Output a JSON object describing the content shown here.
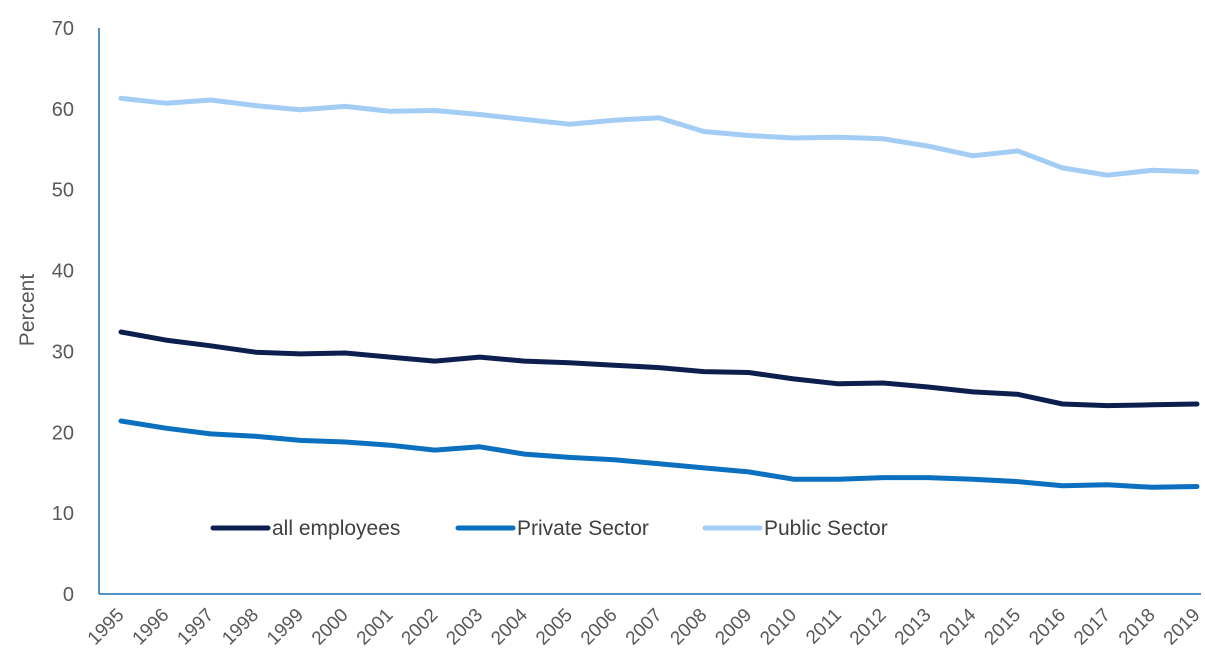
{
  "chart_data": {
    "type": "line",
    "title": "",
    "xlabel": "",
    "ylabel": "Percent",
    "ylim": [
      0,
      70
    ],
    "yticks": [
      0,
      10,
      20,
      30,
      40,
      50,
      60,
      70
    ],
    "grid": false,
    "legend_position": "bottom-center (inside plot)",
    "categories": [
      "1995",
      "1996",
      "1997",
      "1998",
      "1999",
      "2000",
      "2001",
      "2002",
      "2003",
      "2004",
      "2005",
      "2006",
      "2007",
      "2008",
      "2009",
      "2010",
      "2011",
      "2012",
      "2013",
      "2014",
      "2015",
      "2016",
      "2017",
      "2018",
      "2019"
    ],
    "series": [
      {
        "name": "all employees",
        "color": "#0c1f4f",
        "values": [
          32.4,
          31.4,
          30.7,
          29.9,
          29.7,
          29.8,
          29.3,
          28.8,
          29.3,
          28.8,
          28.6,
          28.3,
          28.0,
          27.5,
          27.4,
          26.6,
          26.0,
          26.1,
          25.6,
          25.0,
          24.7,
          23.5,
          23.3,
          23.4,
          23.5
        ]
      },
      {
        "name": "Private Sector",
        "color": "#0a70bf",
        "values": [
          21.4,
          20.5,
          19.8,
          19.5,
          19.0,
          18.8,
          18.4,
          17.8,
          18.2,
          17.3,
          16.9,
          16.6,
          16.1,
          15.6,
          15.1,
          14.2,
          14.2,
          14.4,
          14.4,
          14.2,
          13.9,
          13.4,
          13.5,
          13.2,
          13.3
        ]
      },
      {
        "name": "Public Sector",
        "color": "#a3cdf5",
        "values": [
          61.3,
          60.7,
          61.1,
          60.4,
          59.9,
          60.3,
          59.7,
          59.8,
          59.3,
          58.7,
          58.1,
          58.6,
          58.9,
          57.2,
          56.7,
          56.4,
          56.5,
          56.3,
          55.4,
          54.2,
          54.8,
          52.7,
          51.8,
          52.4,
          52.2
        ]
      }
    ]
  }
}
